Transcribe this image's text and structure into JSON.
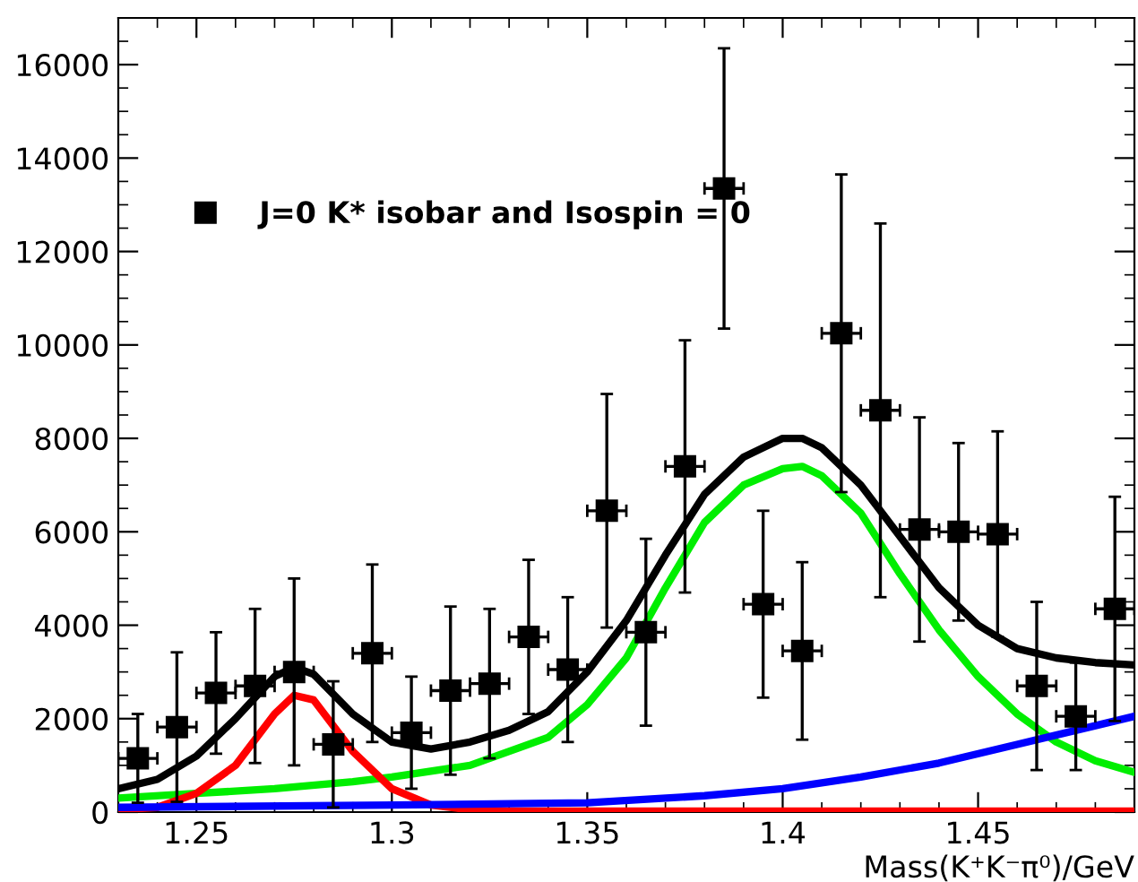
{
  "chart_data": {
    "type": "scatter",
    "xlabel": "Mass(K⁺K⁻π⁰)/GeV",
    "xlim": [
      1.23,
      1.49
    ],
    "ylim": [
      0,
      17000
    ],
    "xticks": [
      1.25,
      1.3,
      1.35,
      1.4,
      1.45
    ],
    "yticks": [
      0,
      2000,
      4000,
      6000,
      8000,
      10000,
      12000,
      14000,
      16000
    ],
    "legend": "top left",
    "grid": false,
    "series": [
      {
        "name": "J=0 K* isobar and Isospin = 0",
        "marker": "square",
        "color": "#000000",
        "x": [
          1.235,
          1.245,
          1.255,
          1.265,
          1.275,
          1.285,
          1.295,
          1.305,
          1.315,
          1.325,
          1.335,
          1.345,
          1.355,
          1.365,
          1.375,
          1.385,
          1.395,
          1.405,
          1.415,
          1.425,
          1.435,
          1.445,
          1.455,
          1.465,
          1.475,
          1.485
        ],
        "values": [
          1150,
          1820,
          2550,
          2700,
          3000,
          1450,
          3400,
          1700,
          2600,
          2750,
          3750,
          3050,
          6450,
          3850,
          7400,
          13350,
          4450,
          3450,
          10250,
          8600,
          6050,
          6000,
          5950,
          2700,
          2050,
          4350
        ],
        "errors": [
          950,
          1600,
          1300,
          1650,
          2000,
          1350,
          1900,
          1200,
          1800,
          1600,
          1650,
          1550,
          2500,
          2000,
          2700,
          3000,
          2000,
          1900,
          3400,
          4000,
          2400,
          1900,
          2200,
          1800,
          1150,
          2400
        ],
        "xerrors": [
          0.005,
          0.005,
          0.005,
          0.005,
          0.005,
          0.005,
          0.005,
          0.005,
          0.005,
          0.005,
          0.005,
          0.005,
          0.005,
          0.005,
          0.005,
          0.005,
          0.005,
          0.005,
          0.005,
          0.005,
          0.005,
          0.005,
          0.005,
          0.005,
          0.005,
          0.005
        ]
      },
      {
        "type": "line",
        "color": "#000000",
        "x": [
          1.23,
          1.24,
          1.25,
          1.26,
          1.27,
          1.275,
          1.28,
          1.29,
          1.3,
          1.31,
          1.32,
          1.33,
          1.34,
          1.35,
          1.36,
          1.37,
          1.38,
          1.39,
          1.4,
          1.405,
          1.41,
          1.42,
          1.43,
          1.44,
          1.45,
          1.46,
          1.47,
          1.48,
          1.49
        ],
        "values": [
          500,
          700,
          1200,
          2000,
          2900,
          3100,
          2950,
          2100,
          1500,
          1350,
          1500,
          1750,
          2150,
          3000,
          4100,
          5500,
          6800,
          7600,
          8000,
          8000,
          7800,
          7000,
          5900,
          4800,
          4000,
          3500,
          3300,
          3200,
          3150
        ]
      },
      {
        "type": "line",
        "color": "#00ee00",
        "x": [
          1.23,
          1.25,
          1.27,
          1.29,
          1.3,
          1.32,
          1.34,
          1.35,
          1.36,
          1.37,
          1.38,
          1.39,
          1.4,
          1.405,
          1.41,
          1.42,
          1.43,
          1.44,
          1.45,
          1.46,
          1.47,
          1.48,
          1.49
        ],
        "values": [
          300,
          400,
          500,
          650,
          750,
          1000,
          1600,
          2300,
          3300,
          4800,
          6200,
          7000,
          7350,
          7400,
          7200,
          6400,
          5100,
          3900,
          2900,
          2100,
          1500,
          1100,
          850
        ]
      },
      {
        "type": "line",
        "color": "#ff0000",
        "x": [
          1.23,
          1.24,
          1.25,
          1.26,
          1.27,
          1.275,
          1.28,
          1.29,
          1.3,
          1.31,
          1.32,
          1.33,
          1.49
        ],
        "values": [
          50,
          100,
          400,
          1000,
          2100,
          2500,
          2400,
          1300,
          500,
          150,
          50,
          20,
          20
        ]
      },
      {
        "type": "line",
        "color": "#0000ff",
        "x": [
          1.23,
          1.3,
          1.35,
          1.38,
          1.4,
          1.42,
          1.44,
          1.46,
          1.48,
          1.49
        ],
        "values": [
          100,
          150,
          200,
          350,
          500,
          750,
          1050,
          1450,
          1850,
          2050
        ]
      }
    ]
  }
}
